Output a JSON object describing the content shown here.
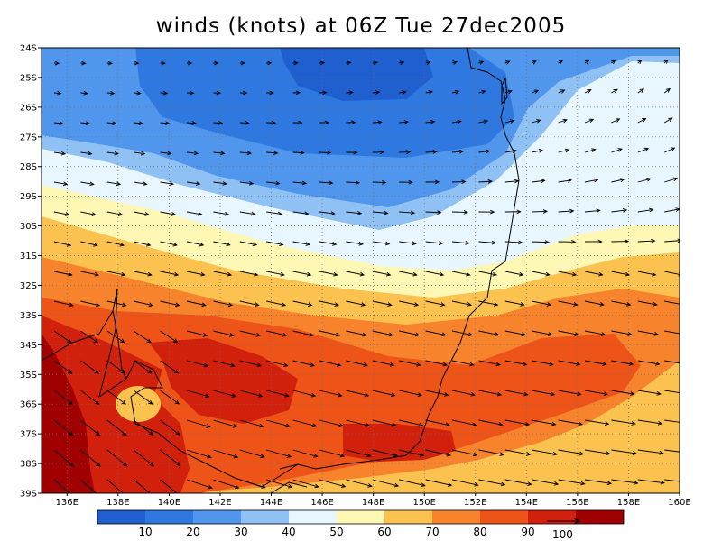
{
  "title": "winds (knots) at 06Z Tue 27dec2005",
  "lat_labels": [
    "24S",
    "25S",
    "26S",
    "27S",
    "28S",
    "29S",
    "30S",
    "31S",
    "32S",
    "33S",
    "34S",
    "35S",
    "36S",
    "37S",
    "38S",
    "39S"
  ],
  "lon_labels": [
    "136E",
    "138E",
    "140E",
    "142E",
    "144E",
    "146E",
    "148E",
    "150E",
    "152E",
    "154E",
    "156E",
    "158E",
    "160E"
  ],
  "colorbar": {
    "labels": [
      "10",
      "20",
      "30",
      "40",
      "50",
      "60",
      "70",
      "80",
      "90"
    ],
    "colors": [
      "#1f5fcf",
      "#2f78e0",
      "#4f96ec",
      "#8fc1f4",
      "#e8f6ff",
      "#fff7b4",
      "#fbc24f",
      "#f7842d",
      "#ee5418",
      "#d1210d",
      "#a10000"
    ]
  },
  "vector_ref_label": "100",
  "colors": {
    "frame": "#000000",
    "grid": "#6e6e6e",
    "coast": "#000000",
    "arrow": "#000000"
  }
}
